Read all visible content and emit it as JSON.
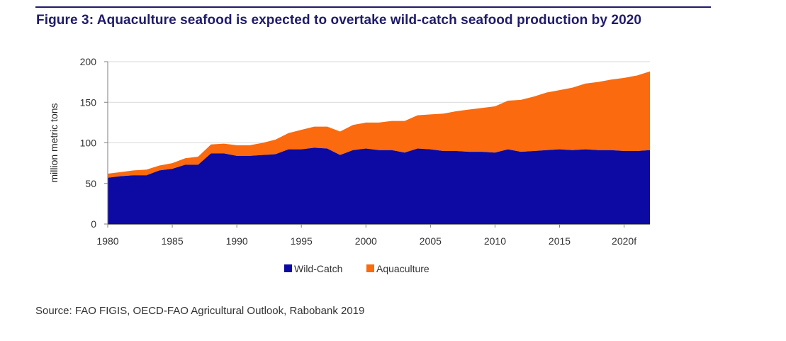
{
  "figure": {
    "title": "Figure 3: Aquaculture seafood is expected to overtake wild-catch seafood production by 2020",
    "source": "Source: FAO FIGIS, OECD-FAO Agricultural Outlook, Rabobank 2019"
  },
  "colors": {
    "title": "#1f1b6b",
    "wild_catch": "#0d0aa3",
    "aquaculture": "#fb6a0e",
    "axis": "#7f7f7f",
    "gridline": "#d9d9d9"
  },
  "chart_data": {
    "type": "area",
    "stacked": true,
    "title": "Figure 3: Aquaculture seafood is expected to overtake wild-catch seafood production by 2020",
    "xlabel": "",
    "ylabel": "million metric tons",
    "ylim": [
      0,
      200
    ],
    "yticks": [
      0,
      50,
      100,
      150,
      200
    ],
    "xlim": [
      1980,
      2022
    ],
    "xticks": [
      {
        "value": 1980,
        "label": "1980"
      },
      {
        "value": 1985,
        "label": "1985"
      },
      {
        "value": 1990,
        "label": "1990"
      },
      {
        "value": 1995,
        "label": "1995"
      },
      {
        "value": 2000,
        "label": "2000"
      },
      {
        "value": 2005,
        "label": "2005"
      },
      {
        "value": 2010,
        "label": "2010"
      },
      {
        "value": 2015,
        "label": "2015"
      },
      {
        "value": 2020,
        "label": "2020f"
      }
    ],
    "grid": true,
    "legend_position": "bottom",
    "x": [
      1980,
      1981,
      1982,
      1983,
      1984,
      1985,
      1986,
      1987,
      1988,
      1989,
      1990,
      1991,
      1992,
      1993,
      1994,
      1995,
      1996,
      1997,
      1998,
      1999,
      2000,
      2001,
      2002,
      2003,
      2004,
      2005,
      2006,
      2007,
      2008,
      2009,
      2010,
      2011,
      2012,
      2013,
      2014,
      2015,
      2016,
      2017,
      2018,
      2019,
      2020,
      2021,
      2022
    ],
    "series": [
      {
        "name": "Wild-Catch",
        "values": [
          57,
          59,
          60,
          60,
          66,
          68,
          73,
          73,
          87,
          87,
          84,
          84,
          85,
          86,
          92,
          92,
          94,
          93,
          85,
          91,
          93,
          91,
          91,
          88,
          93,
          92,
          90,
          90,
          89,
          89,
          88,
          92,
          89,
          90,
          91,
          92,
          91,
          92,
          91,
          91,
          90,
          90,
          91
        ]
      },
      {
        "name": "Aquaculture",
        "values": [
          5,
          5,
          6,
          7,
          6,
          7,
          8,
          10,
          11,
          12,
          13,
          13,
          15,
          18,
          20,
          24,
          26,
          27,
          29,
          31,
          32,
          34,
          36,
          39,
          41,
          43,
          46,
          49,
          52,
          54,
          57,
          60,
          64,
          67,
          71,
          73,
          77,
          81,
          84,
          87,
          90,
          93,
          97
        ]
      }
    ]
  }
}
